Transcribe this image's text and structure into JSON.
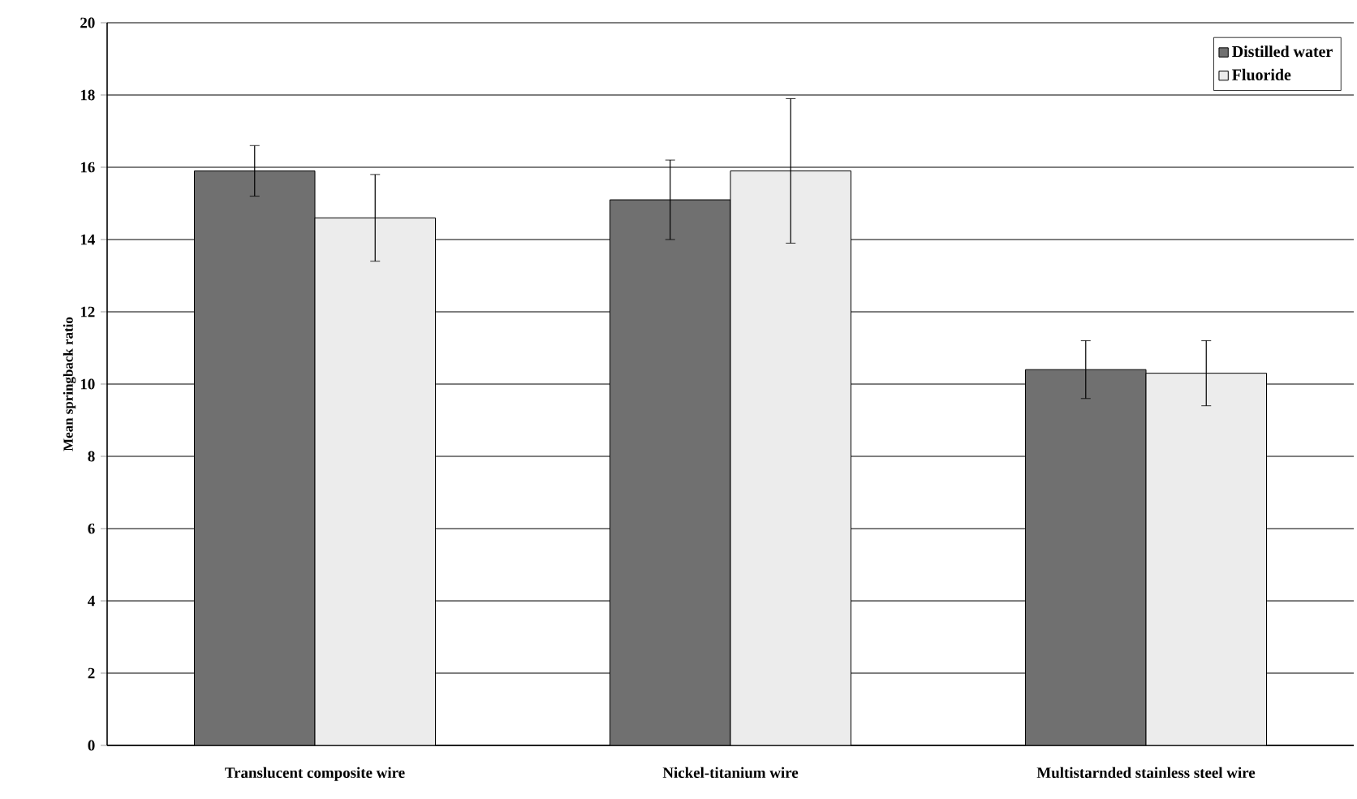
{
  "chart_data": {
    "type": "bar",
    "ylabel": "Mean springback ratio",
    "categories": [
      "Translucent composite wire",
      "Nickel-titanium wire",
      "Multistarnded stainless steel wire"
    ],
    "series": [
      {
        "name": "Distilled water",
        "color": "#707070",
        "values": [
          15.9,
          15.1,
          10.4
        ],
        "errors": [
          0.7,
          1.1,
          0.8
        ]
      },
      {
        "name": "Fluoride",
        "color": "#ececec",
        "values": [
          14.6,
          15.9,
          10.3
        ],
        "errors": [
          1.2,
          2.0,
          0.9
        ]
      }
    ],
    "ylim": [
      0,
      20
    ],
    "yticks": [
      0,
      2,
      4,
      6,
      8,
      10,
      12,
      14,
      16,
      18,
      20
    ],
    "grid": "y",
    "legend": "top right"
  }
}
